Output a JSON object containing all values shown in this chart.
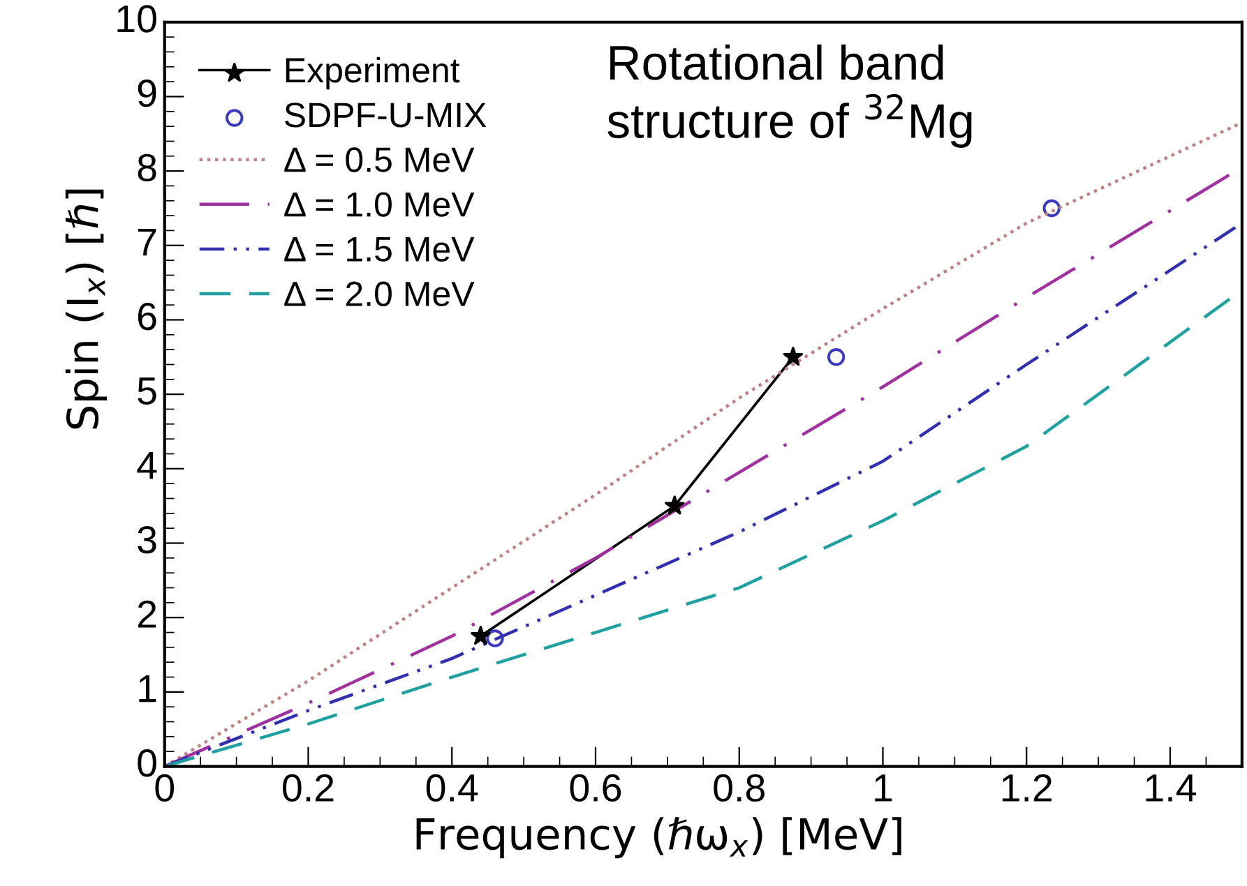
{
  "chart_data": {
    "type": "line",
    "title": "Rotational band\nstructure of $^{32}$Mg",
    "xlabel": "Frequency (ℏω$_{x}$) [MeV]",
    "ylabel": "Spin (I$_{x}$) [ℏ]",
    "xlim": [
      0,
      1.5
    ],
    "ylim": [
      0,
      10
    ],
    "xticks": [
      0,
      0.2,
      0.4,
      0.6,
      0.8,
      1,
      1.2,
      1.4
    ],
    "yticks": [
      0,
      1,
      2,
      3,
      4,
      5,
      6,
      7,
      8,
      9,
      10
    ],
    "grid": false,
    "legend": "top left",
    "series": [
      {
        "name": "Experiment",
        "color": "#000000",
        "marker": "star",
        "line_style": "solid",
        "x": [
          0.44,
          0.71,
          0.875
        ],
        "values": [
          1.75,
          3.5,
          5.5
        ]
      },
      {
        "name": "SDPF-U-MIX",
        "type": "scatter",
        "color": "#3a3ac0",
        "marker": "circle",
        "x": [
          0.46,
          0.935,
          1.235
        ],
        "values": [
          1.72,
          5.5,
          7.5
        ]
      },
      {
        "name": "Δ = 0.5 MeV",
        "color": "#c08080",
        "marker": "none",
        "line_style": "dotted",
        "x": [
          0,
          0.2,
          0.4,
          0.6,
          0.8,
          1.0,
          1.2,
          1.5
        ],
        "values": [
          0,
          1.15,
          2.4,
          3.65,
          4.95,
          6.15,
          7.3,
          8.65
        ]
      },
      {
        "name": "Δ = 1.0 MeV",
        "color": "#a030a0",
        "marker": "none",
        "line_style": "dashdot",
        "x": [
          0,
          0.2,
          0.4,
          0.6,
          0.8,
          1.0,
          1.2,
          1.5
        ],
        "values": [
          0,
          0.85,
          1.75,
          2.8,
          3.95,
          5.1,
          6.3,
          8.05
        ]
      },
      {
        "name": "Δ = 1.5 MeV",
        "color": "#3030b0",
        "marker": "none",
        "line_style": "dashdotdot",
        "x": [
          0,
          0.2,
          0.4,
          0.6,
          0.8,
          1.0,
          1.2,
          1.5
        ],
        "values": [
          0,
          0.75,
          1.45,
          2.3,
          3.15,
          4.1,
          5.4,
          7.3
        ]
      },
      {
        "name": "Δ = 2.0 MeV",
        "color": "#20a0a0",
        "marker": "none",
        "line_style": "dashed",
        "x": [
          0,
          0.2,
          0.4,
          0.6,
          0.8,
          1.0,
          1.2,
          1.5
        ],
        "values": [
          0,
          0.57,
          1.2,
          1.8,
          2.4,
          3.3,
          4.3,
          6.4
        ]
      }
    ]
  }
}
